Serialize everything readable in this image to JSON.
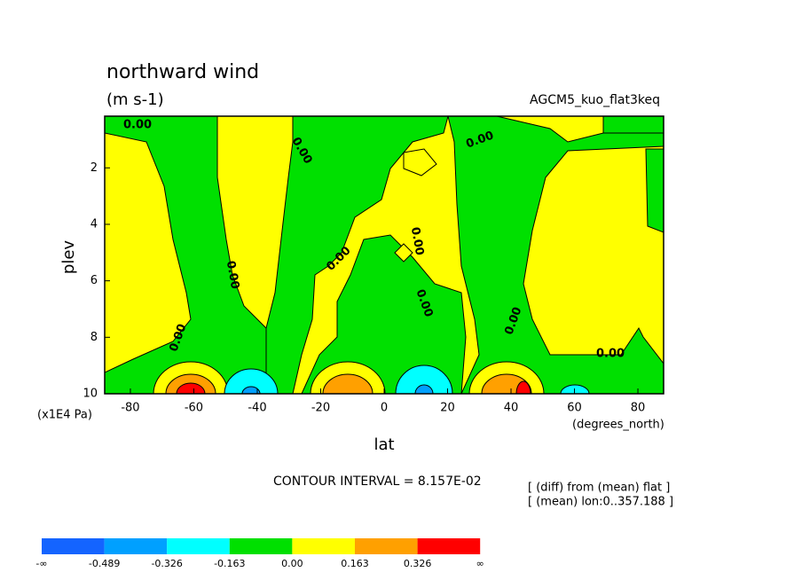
{
  "chart_data": {
    "type": "contour",
    "title": "northward wind",
    "subtitle": "(m s-1)",
    "experiment": "AGCM5_kuo_flat3keq",
    "x_label": "lat",
    "x_units": "(degrees_north)",
    "y_label": "plev",
    "y_units": "(x1E4 Pa)",
    "xlim": [
      -88.1,
      88.1
    ],
    "xticks": [
      -80,
      -60,
      -40,
      -20,
      0,
      20,
      40,
      60,
      80
    ],
    "ylim": [
      10,
      0.17
    ],
    "yticks": [
      2,
      4,
      6,
      8,
      10
    ],
    "contour_interval": "CONTOUR INTERVAL = 8.157E-02",
    "notes": [
      "[ (diff) from (mean) flat ]",
      "[ (mean) lon:0..357.188 ]"
    ],
    "contour_labels": [
      "0.00",
      "0.00",
      "0.00",
      "0.00",
      "0.00",
      "0.00",
      "0.00",
      "0.00",
      "0.00",
      "0.00"
    ],
    "colorbar": {
      "colors": [
        "#1464ff",
        "#00a0ff",
        "#00ffff",
        "#00e000",
        "#ffff00",
        "#ffa000",
        "#ff0000"
      ],
      "ticks": [
        "-∞",
        -0.489,
        -0.326,
        -0.163,
        {
          "value": 0,
          "label": "0.00"
        },
        0.163,
        0.326,
        "∞"
      ]
    }
  }
}
